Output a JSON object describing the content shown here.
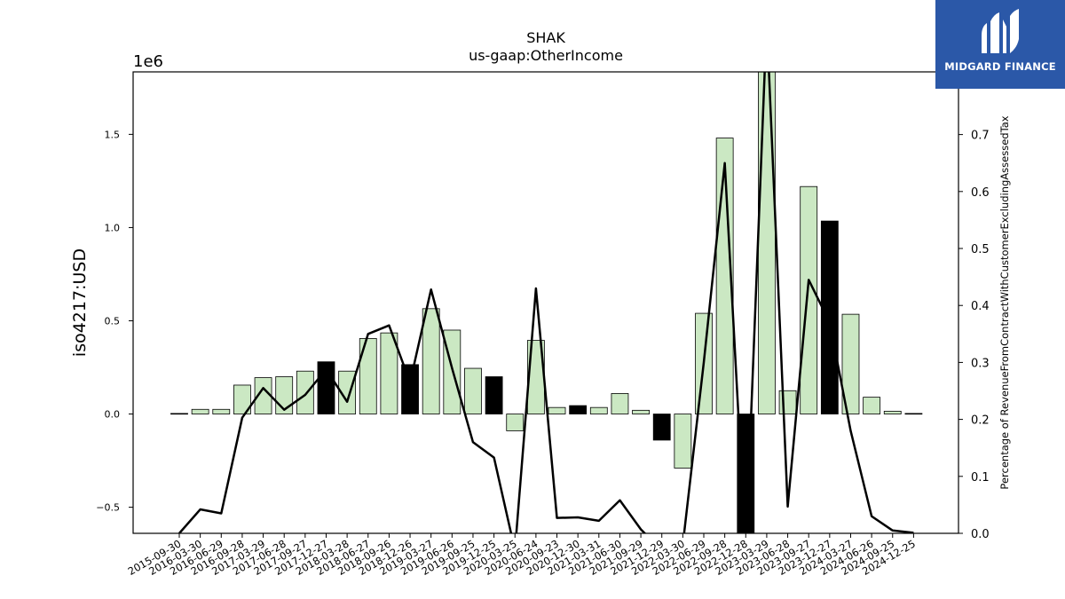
{
  "chart_data": {
    "type": "bar",
    "title": "SHAK",
    "subtitle": "us-gaap:OtherIncome",
    "ylabel": "iso4217:USD",
    "y2label": "Percentage of RevenueFromContractWithCustomerExcludingAssessedTax",
    "offset_label": "1e6",
    "ylim": [
      -0.64,
      1.835
    ],
    "y2lim": [
      0.0,
      0.81
    ],
    "yticks": [
      "−0.5",
      "0.0",
      "0.5",
      "1.0",
      "1.5"
    ],
    "y2ticks": [
      "0.0",
      "0.1",
      "0.2",
      "0.3",
      "0.4",
      "0.5",
      "0.6",
      "0.7"
    ],
    "categories": [
      "2015-09-30",
      "2016-03-30",
      "2016-06-29",
      "2016-09-28",
      "2017-03-29",
      "2017-06-28",
      "2017-09-27",
      "2017-12-27",
      "2018-03-28",
      "2018-06-27",
      "2018-09-26",
      "2018-12-26",
      "2019-03-27",
      "2019-06-26",
      "2019-09-25",
      "2019-12-25",
      "2020-03-25",
      "2020-06-24",
      "2020-09-23",
      "2020-12-30",
      "2021-03-31",
      "2021-06-30",
      "2021-09-29",
      "2021-12-29",
      "2022-03-30",
      "2022-06-29",
      "2022-09-28",
      "2022-12-28",
      "2023-03-29",
      "2023-06-28",
      "2023-09-27",
      "2023-12-27",
      "2024-03-27",
      "2024-06-26",
      "2024-09-25",
      "2024-12-25"
    ],
    "series": [
      {
        "kind": "bar",
        "values": [
          0.003,
          0.025,
          0.025,
          0.155,
          0.195,
          0.2,
          0.23,
          0.28,
          0.23,
          0.405,
          0.435,
          0.265,
          0.565,
          0.45,
          0.245,
          0.2,
          -0.09,
          0.395,
          0.035,
          0.045,
          0.035,
          0.11,
          0.02,
          -0.14,
          -0.29,
          0.54,
          1.48,
          -0.65,
          1.95,
          0.125,
          1.22,
          1.035,
          0.535,
          0.09,
          0.015,
          0.003
        ],
        "highlight": [
          false,
          false,
          false,
          false,
          false,
          false,
          false,
          true,
          false,
          false,
          false,
          true,
          false,
          false,
          false,
          true,
          false,
          false,
          false,
          true,
          false,
          false,
          false,
          true,
          false,
          false,
          false,
          true,
          false,
          false,
          false,
          true,
          false,
          false,
          false,
          false
        ]
      },
      {
        "kind": "line",
        "axis": "right",
        "values": [
          0.0,
          0.042,
          0.035,
          0.203,
          0.255,
          0.217,
          0.243,
          0.288,
          0.231,
          0.35,
          0.365,
          0.265,
          0.428,
          0.29,
          0.16,
          0.133,
          -0.03,
          0.43,
          0.027,
          0.028,
          0.022,
          0.058,
          0.007,
          -0.03,
          -0.02,
          0.3,
          0.65,
          -0.03,
          0.9,
          0.047,
          0.445,
          0.37,
          0.18,
          0.03,
          0.005,
          0.001
        ]
      }
    ],
    "colors": {
      "bar": "#cbe8c3",
      "highlight": "#000000",
      "line": "#000000",
      "logo_bg": "#2b58a8"
    },
    "legend": "none",
    "grid": false
  },
  "logo": {
    "name": "MIDGARD FINANCE"
  }
}
